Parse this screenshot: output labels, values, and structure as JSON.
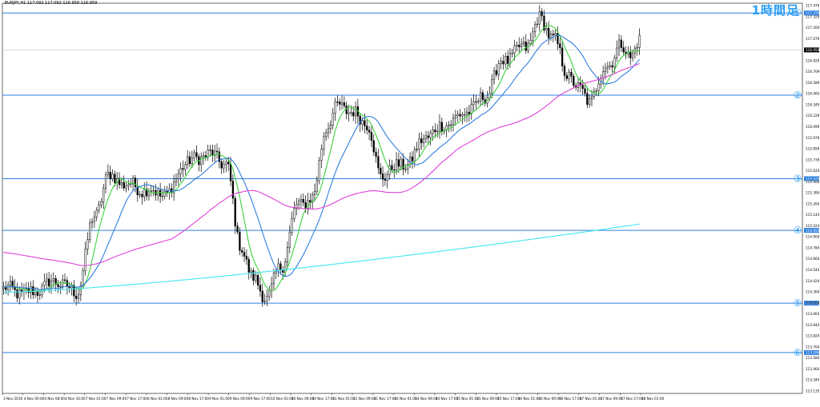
{
  "header": {
    "title": "EURJPY,H1  117.092 117.092 116.959 116.959",
    "timeframe_label": "1時間足"
  },
  "colors": {
    "up": "#ffffff",
    "down": "#000000",
    "ma_fast": "#3cd23c",
    "ma_mid": "#2f7fe0",
    "ma_slow": "#e040d8",
    "ma_long": "#3fe8f0",
    "level": "#2f7fe0",
    "accent": "#2a9df4"
  },
  "chart_data": {
    "type": "candlestick",
    "symbol": "EURJPY",
    "timeframe": "H1",
    "ylim": [
      113.135,
      117.479
    ],
    "y_ticks": [
      "117.479",
      "117.329",
      "117.204",
      "117.079",
      "116.954",
      "116.829",
      "116.709",
      "116.589",
      "116.465",
      "116.349",
      "116.229",
      "116.099",
      "115.979",
      "115.859",
      "115.739",
      "115.624",
      "115.504",
      "115.384",
      "115.264",
      "115.144",
      "115.024",
      "114.904",
      "114.784",
      "114.664",
      "114.544",
      "114.424",
      "114.304",
      "114.184",
      "114.064",
      "113.944",
      "113.824",
      "113.704",
      "113.584",
      "113.464",
      "113.344",
      "113.135"
    ],
    "current_price_label": "116.959",
    "x_labels": [
      "3 Nov 2016",
      "4 Nov 00:00",
      "4 Nov 08:00",
      "4 Nov 16:00",
      "7 Nov 01:00",
      "7 Nov 09:00",
      "7 Nov 17:00",
      "8 Nov 01:00",
      "8 Nov 09:00",
      "8 Nov 17:00",
      "9 Nov 01:00",
      "9 Nov 09:00",
      "9 Nov 17:00",
      "10 Nov 01:00",
      "10 Nov 09:00",
      "10 Nov 17:00",
      "11 Nov 01:00",
      "11 Nov 09:00",
      "11 Nov 17:00",
      "14 Nov 01:00",
      "14 Nov 09:00",
      "14 Nov 17:00",
      "15 Nov 01:00",
      "15 Nov 09:00",
      "15 Nov 17:00",
      "16 Nov 01:00",
      "16 Nov 09:00",
      "16 Nov 17:00",
      "17 Nov 01:00",
      "17 Nov 09:00",
      "17 Nov 17:00",
      "18 Nov 01:00"
    ],
    "horizontal_levels": [
      {
        "marker": "①",
        "price": 117.37,
        "tag": "117.370"
      },
      {
        "marker": "②",
        "price": 116.455,
        "tag": ""
      },
      {
        "marker": "③",
        "price": 115.525,
        "tag": "115.525"
      },
      {
        "marker": "④",
        "price": 114.95,
        "tag": "114.950"
      },
      {
        "marker": "⑤",
        "price": 114.14,
        "tag": "114.140"
      },
      {
        "marker": "⑥",
        "price": 113.59,
        "tag": "113.590"
      }
    ],
    "anchors": [
      [
        0,
        114.3
      ],
      [
        10,
        114.25
      ],
      [
        24,
        114.38
      ],
      [
        32,
        114.25
      ],
      [
        40,
        115.1
      ],
      [
        46,
        115.55
      ],
      [
        56,
        115.45
      ],
      [
        62,
        115.4
      ],
      [
        72,
        115.35
      ],
      [
        80,
        115.7
      ],
      [
        90,
        115.8
      ],
      [
        98,
        115.7
      ],
      [
        104,
        114.8
      ],
      [
        110,
        114.4
      ],
      [
        116,
        114.2
      ],
      [
        122,
        114.55
      ],
      [
        130,
        115.25
      ],
      [
        136,
        115.3
      ],
      [
        142,
        116.1
      ],
      [
        148,
        116.35
      ],
      [
        154,
        116.25
      ],
      [
        160,
        116.15
      ],
      [
        166,
        115.55
      ],
      [
        172,
        115.65
      ],
      [
        178,
        115.7
      ],
      [
        186,
        116.0
      ],
      [
        196,
        116.15
      ],
      [
        206,
        116.3
      ],
      [
        212,
        116.45
      ],
      [
        220,
        116.85
      ],
      [
        230,
        117.0
      ],
      [
        236,
        117.3
      ],
      [
        242,
        117.1
      ],
      [
        248,
        116.7
      ],
      [
        254,
        116.5
      ],
      [
        258,
        116.4
      ],
      [
        266,
        116.8
      ],
      [
        272,
        117.0
      ],
      [
        276,
        116.9
      ],
      [
        280,
        117.05
      ]
    ],
    "n_bars": 281,
    "series": [
      {
        "name": "MA fast",
        "color_key": "ma_fast",
        "period": 8
      },
      {
        "name": "MA mid",
        "color_key": "ma_mid",
        "period": 20
      },
      {
        "name": "MA slow",
        "color_key": "ma_slow",
        "period": 75,
        "seed_start": 114.86
      },
      {
        "name": "MA long",
        "color_key": "ma_long",
        "period": 200,
        "start": 114.26,
        "end": 115.02,
        "curve": 1.35
      }
    ],
    "grid": false,
    "legend": "none"
  }
}
